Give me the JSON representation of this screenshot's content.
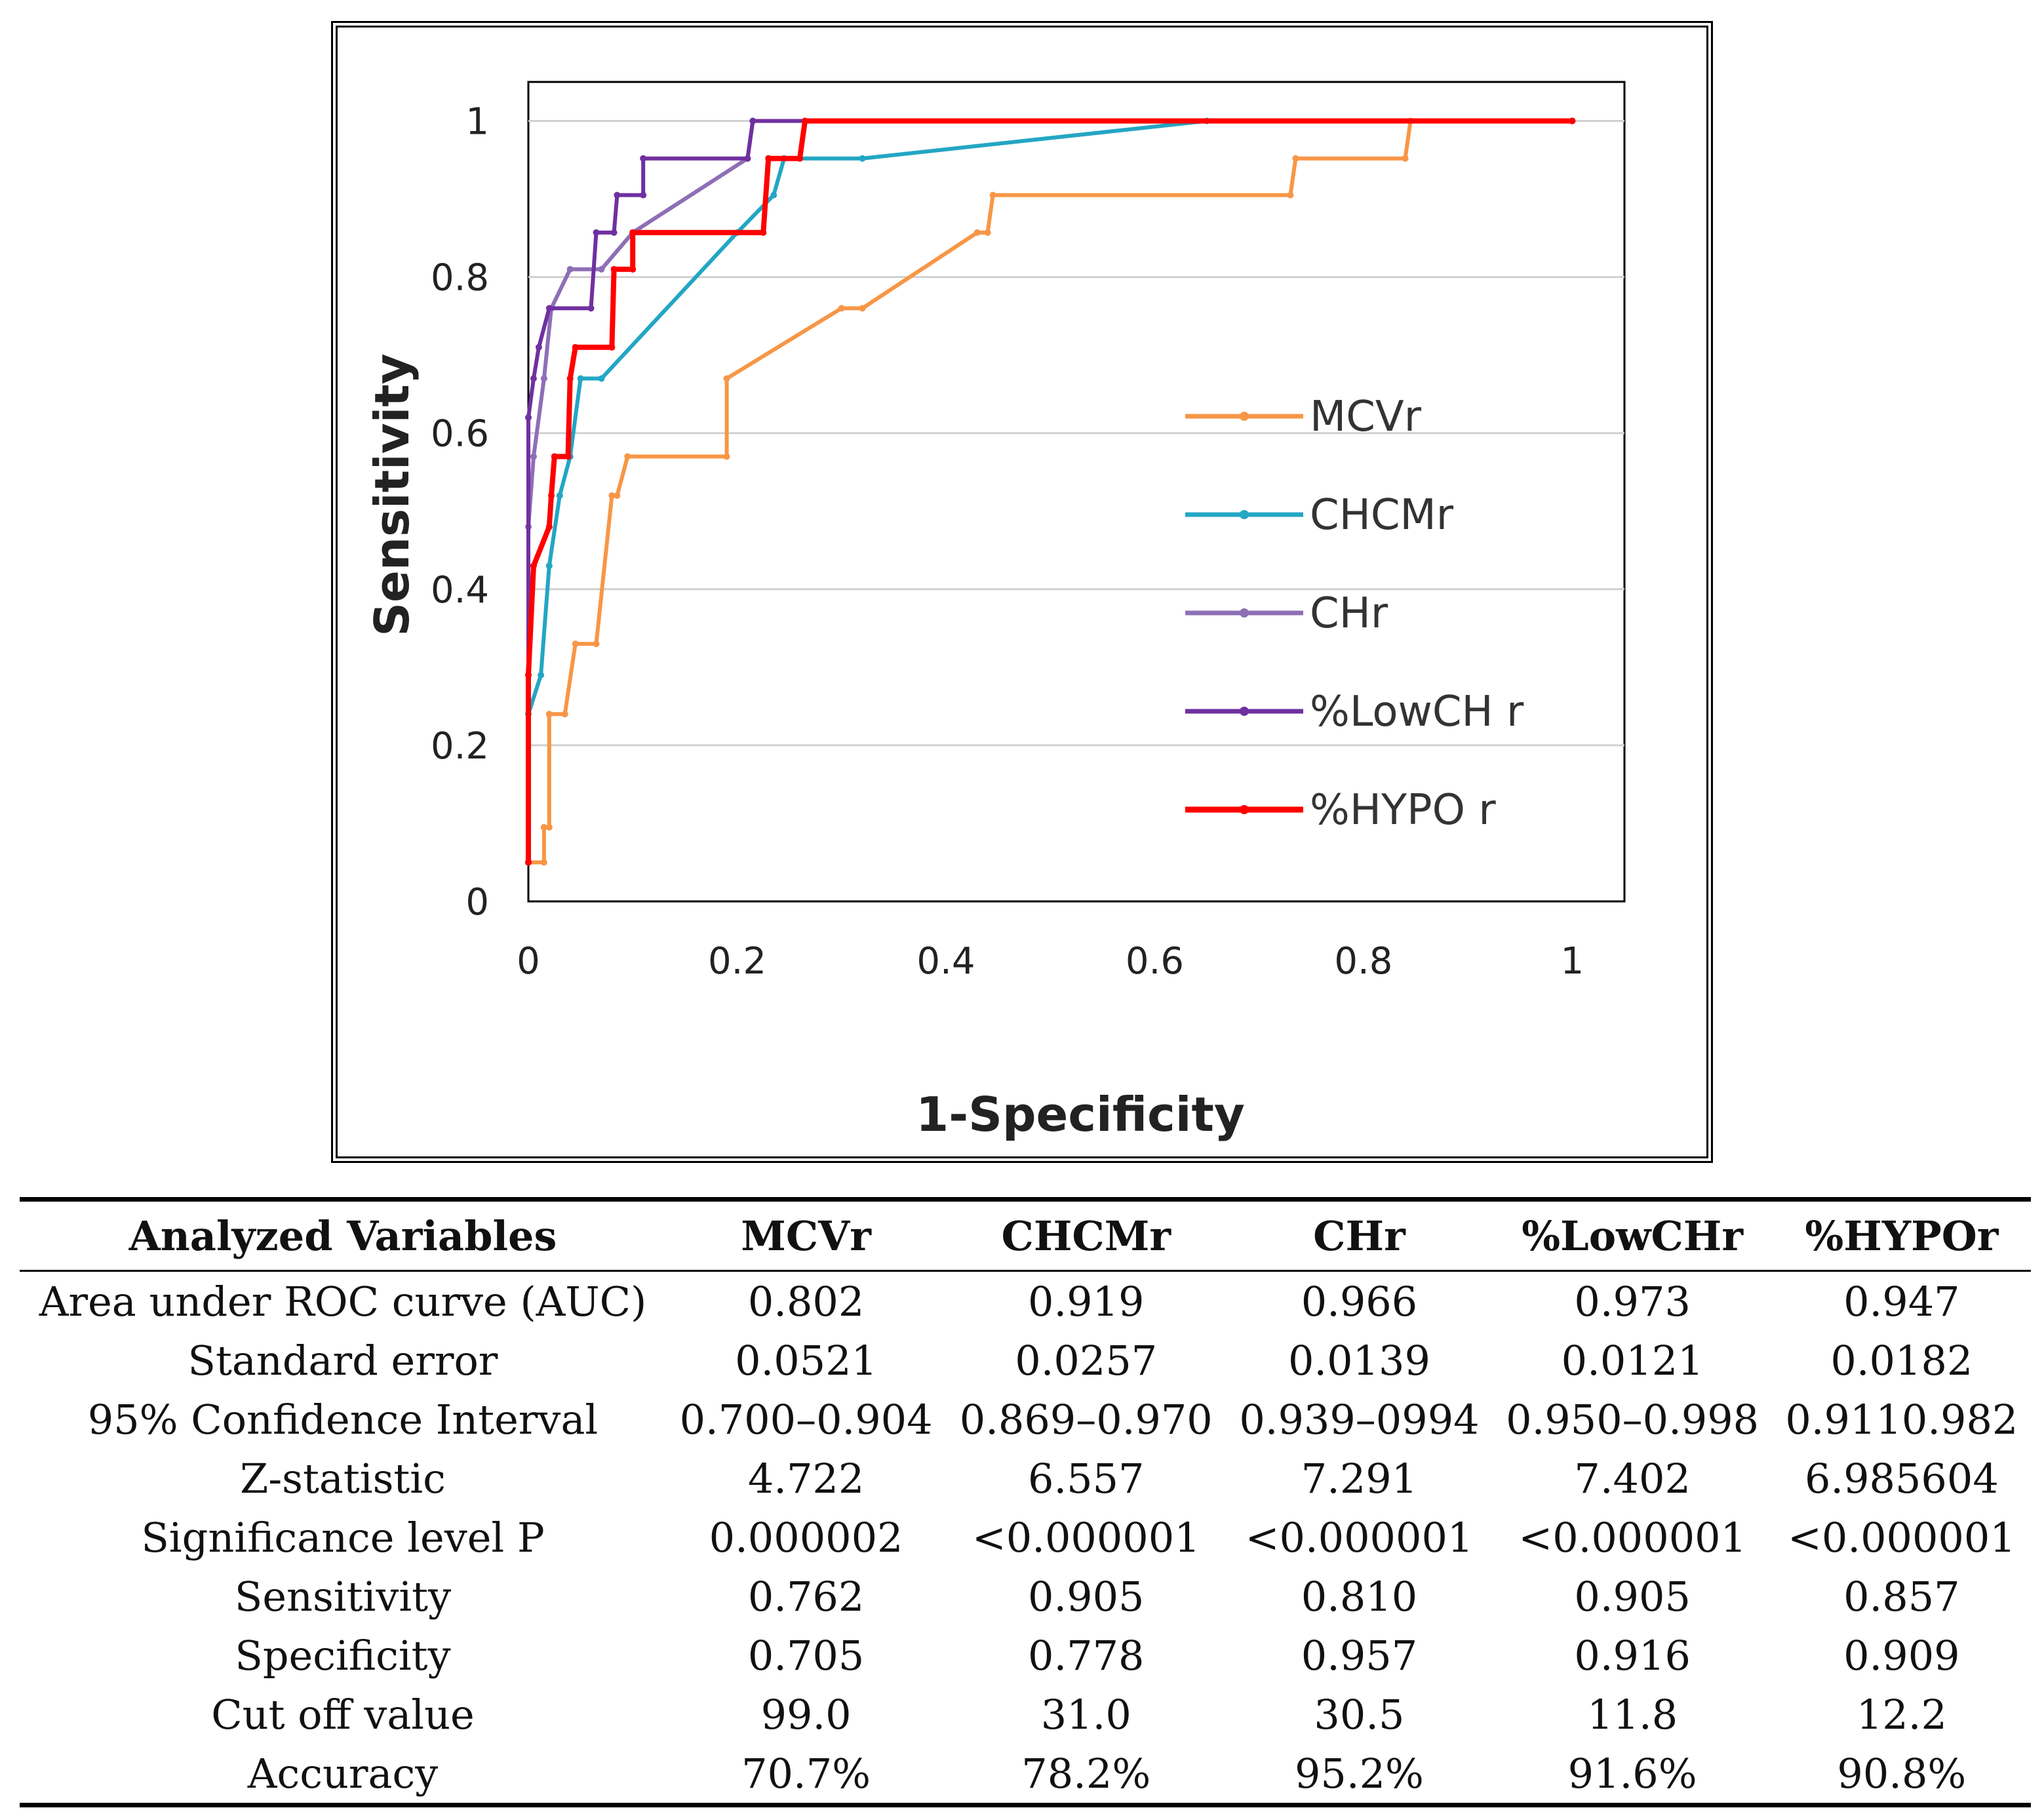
{
  "chart_data": {
    "type": "line",
    "subtype": "roc-step",
    "xlabel": "1-Specificity",
    "ylabel": "Sensitivity",
    "xlim": [
      0,
      1.05
    ],
    "ylim": [
      0,
      1.05
    ],
    "xticks": [
      0,
      0.2,
      0.4,
      0.6,
      0.8,
      1
    ],
    "xtick_labels": [
      "0",
      "0.2",
      "0.4",
      "0.6",
      "0.8",
      "1"
    ],
    "yticks": [
      0,
      0.2,
      0.4,
      0.6,
      0.8,
      1
    ],
    "ytick_labels": [
      "0",
      "0.2",
      "0.4",
      "0.6",
      "0.8",
      "1"
    ],
    "grid": "horizontal",
    "legend_position": "right-middle",
    "series": [
      {
        "name": "MCVr",
        "color": "#F79646",
        "points": [
          [
            0,
            0.05
          ],
          [
            0.015,
            0.05
          ],
          [
            0.015,
            0.095
          ],
          [
            0.02,
            0.095
          ],
          [
            0.02,
            0.24
          ],
          [
            0.035,
            0.24
          ],
          [
            0.045,
            0.33
          ],
          [
            0.065,
            0.33
          ],
          [
            0.08,
            0.52
          ],
          [
            0.085,
            0.52
          ],
          [
            0.095,
            0.57
          ],
          [
            0.19,
            0.57
          ],
          [
            0.19,
            0.67
          ],
          [
            0.3,
            0.76
          ],
          [
            0.32,
            0.76
          ],
          [
            0.43,
            0.857
          ],
          [
            0.44,
            0.857
          ],
          [
            0.445,
            0.905
          ],
          [
            0.73,
            0.905
          ],
          [
            0.735,
            0.952
          ],
          [
            0.84,
            0.952
          ],
          [
            0.845,
            1
          ],
          [
            1,
            1
          ]
        ]
      },
      {
        "name": "CHCMr",
        "color": "#23A6C4",
        "points": [
          [
            0,
            0.05
          ],
          [
            0,
            0.24
          ],
          [
            0.012,
            0.29
          ],
          [
            0.02,
            0.43
          ],
          [
            0.03,
            0.52
          ],
          [
            0.04,
            0.57
          ],
          [
            0.05,
            0.67
          ],
          [
            0.07,
            0.67
          ],
          [
            0.2,
            0.857
          ],
          [
            0.235,
            0.905
          ],
          [
            0.245,
            0.952
          ],
          [
            0.32,
            0.952
          ],
          [
            0.65,
            1
          ],
          [
            1,
            1
          ]
        ]
      },
      {
        "name": "CHr",
        "color": "#8E6FB6",
        "points": [
          [
            0,
            0.05
          ],
          [
            0,
            0.48
          ],
          [
            0.005,
            0.57
          ],
          [
            0.015,
            0.67
          ],
          [
            0.022,
            0.76
          ],
          [
            0.04,
            0.81
          ],
          [
            0.07,
            0.81
          ],
          [
            0.1,
            0.857
          ],
          [
            0.21,
            0.952
          ],
          [
            0.215,
            1
          ],
          [
            1,
            1
          ]
        ]
      },
      {
        "name": "%LowCH r",
        "color": "#7030A0",
        "points": [
          [
            0,
            0.05
          ],
          [
            0,
            0.62
          ],
          [
            0.005,
            0.67
          ],
          [
            0.01,
            0.71
          ],
          [
            0.02,
            0.76
          ],
          [
            0.06,
            0.76
          ],
          [
            0.065,
            0.857
          ],
          [
            0.082,
            0.857
          ],
          [
            0.085,
            0.905
          ],
          [
            0.11,
            0.905
          ],
          [
            0.11,
            0.952
          ],
          [
            0.21,
            0.952
          ],
          [
            0.215,
            1
          ],
          [
            1,
            1
          ]
        ]
      },
      {
        "name": "%HYPO r",
        "color": "#FF0000",
        "points": [
          [
            0,
            0.05
          ],
          [
            0,
            0.29
          ],
          [
            0.005,
            0.43
          ],
          [
            0.02,
            0.48
          ],
          [
            0.022,
            0.52
          ],
          [
            0.025,
            0.57
          ],
          [
            0.038,
            0.57
          ],
          [
            0.04,
            0.67
          ],
          [
            0.045,
            0.71
          ],
          [
            0.08,
            0.71
          ],
          [
            0.082,
            0.81
          ],
          [
            0.1,
            0.81
          ],
          [
            0.1,
            0.857
          ],
          [
            0.225,
            0.857
          ],
          [
            0.23,
            0.952
          ],
          [
            0.26,
            0.952
          ],
          [
            0.265,
            1
          ],
          [
            1,
            1
          ]
        ]
      }
    ]
  },
  "table": {
    "headers": [
      "Analyzed Variables",
      "MCVr",
      "CHCMr",
      "CHr",
      "%LowCHr",
      "%HYPOr"
    ],
    "rows": [
      [
        "Area under ROC curve (AUC)",
        "0.802",
        "0.919",
        "0.966",
        "0.973",
        "0.947"
      ],
      [
        "Standard error",
        "0.0521",
        "0.0257",
        "0.0139",
        "0.0121",
        "0.0182"
      ],
      [
        "95% Confidence Interval",
        "0.700–0.904",
        "0.869–0.970",
        "0.939–0994",
        "0.950–0.998",
        "0.9110.982"
      ],
      [
        "Z-statistic",
        "4.722",
        "6.557",
        "7.291",
        "7.402",
        "6.985604"
      ],
      [
        "Significance level P",
        "0.000002",
        "<0.000001",
        "<0.000001",
        "<0.000001",
        "<0.000001"
      ],
      [
        "Sensitivity",
        "0.762",
        "0.905",
        "0.810",
        "0.905",
        "0.857"
      ],
      [
        "Specificity",
        "0.705",
        "0.778",
        "0.957",
        "0.916",
        "0.909"
      ],
      [
        "Cut off value",
        "99.0",
        "31.0",
        "30.5",
        "11.8",
        "12.2"
      ],
      [
        "Accuracy",
        "70.7%",
        "78.2%",
        "95.2%",
        "91.6%",
        "90.8%"
      ]
    ]
  }
}
